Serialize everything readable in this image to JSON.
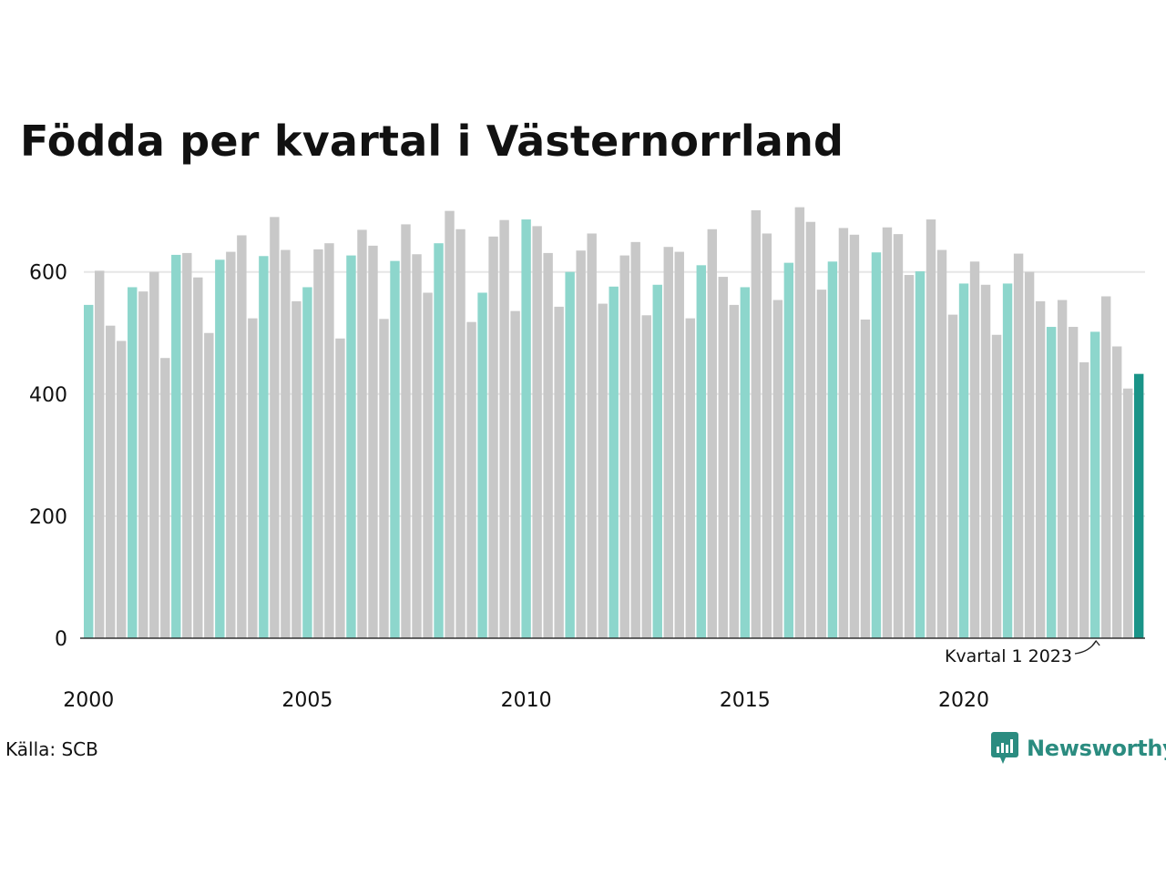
{
  "title": "Födda per kvartal i Västernorrland",
  "source": "Källa: SCB",
  "brand": "Newsworthy",
  "colors": {
    "q1": "#8dd6cc",
    "other": "#c8c8c8",
    "latest": "#1a9488",
    "grid": "#e6e6e6",
    "axis": "#333333",
    "brand": "#2b8c80"
  },
  "chart_data": {
    "type": "bar",
    "title": "Födda per kvartal i Västernorrland",
    "xlabel": "",
    "ylabel": "",
    "ylim": [
      0,
      720
    ],
    "yticks": [
      0,
      200,
      400,
      600
    ],
    "xticks": [
      "2000",
      "2005",
      "2010",
      "2015",
      "2020"
    ],
    "grid": true,
    "start_year": 2000,
    "annotation": "Kvartal 1 2023",
    "values": [
      546,
      602,
      512,
      487,
      575,
      568,
      600,
      459,
      628,
      631,
      591,
      500,
      620,
      633,
      660,
      524,
      626,
      690,
      636,
      552,
      575,
      637,
      647,
      491,
      627,
      669,
      643,
      523,
      618,
      678,
      629,
      566,
      647,
      700,
      670,
      518,
      566,
      658,
      685,
      536,
      686,
      675,
      631,
      543,
      600,
      635,
      663,
      548,
      576,
      627,
      649,
      529,
      579,
      641,
      633,
      524,
      611,
      670,
      592,
      546,
      575,
      701,
      663,
      554,
      615,
      706,
      682,
      571,
      617,
      672,
      661,
      522,
      632,
      673,
      662,
      595,
      601,
      686,
      636,
      530,
      581,
      617,
      579,
      497,
      581,
      630,
      600,
      552,
      510,
      554,
      510,
      452,
      502,
      560,
      478,
      409,
      433
    ]
  }
}
